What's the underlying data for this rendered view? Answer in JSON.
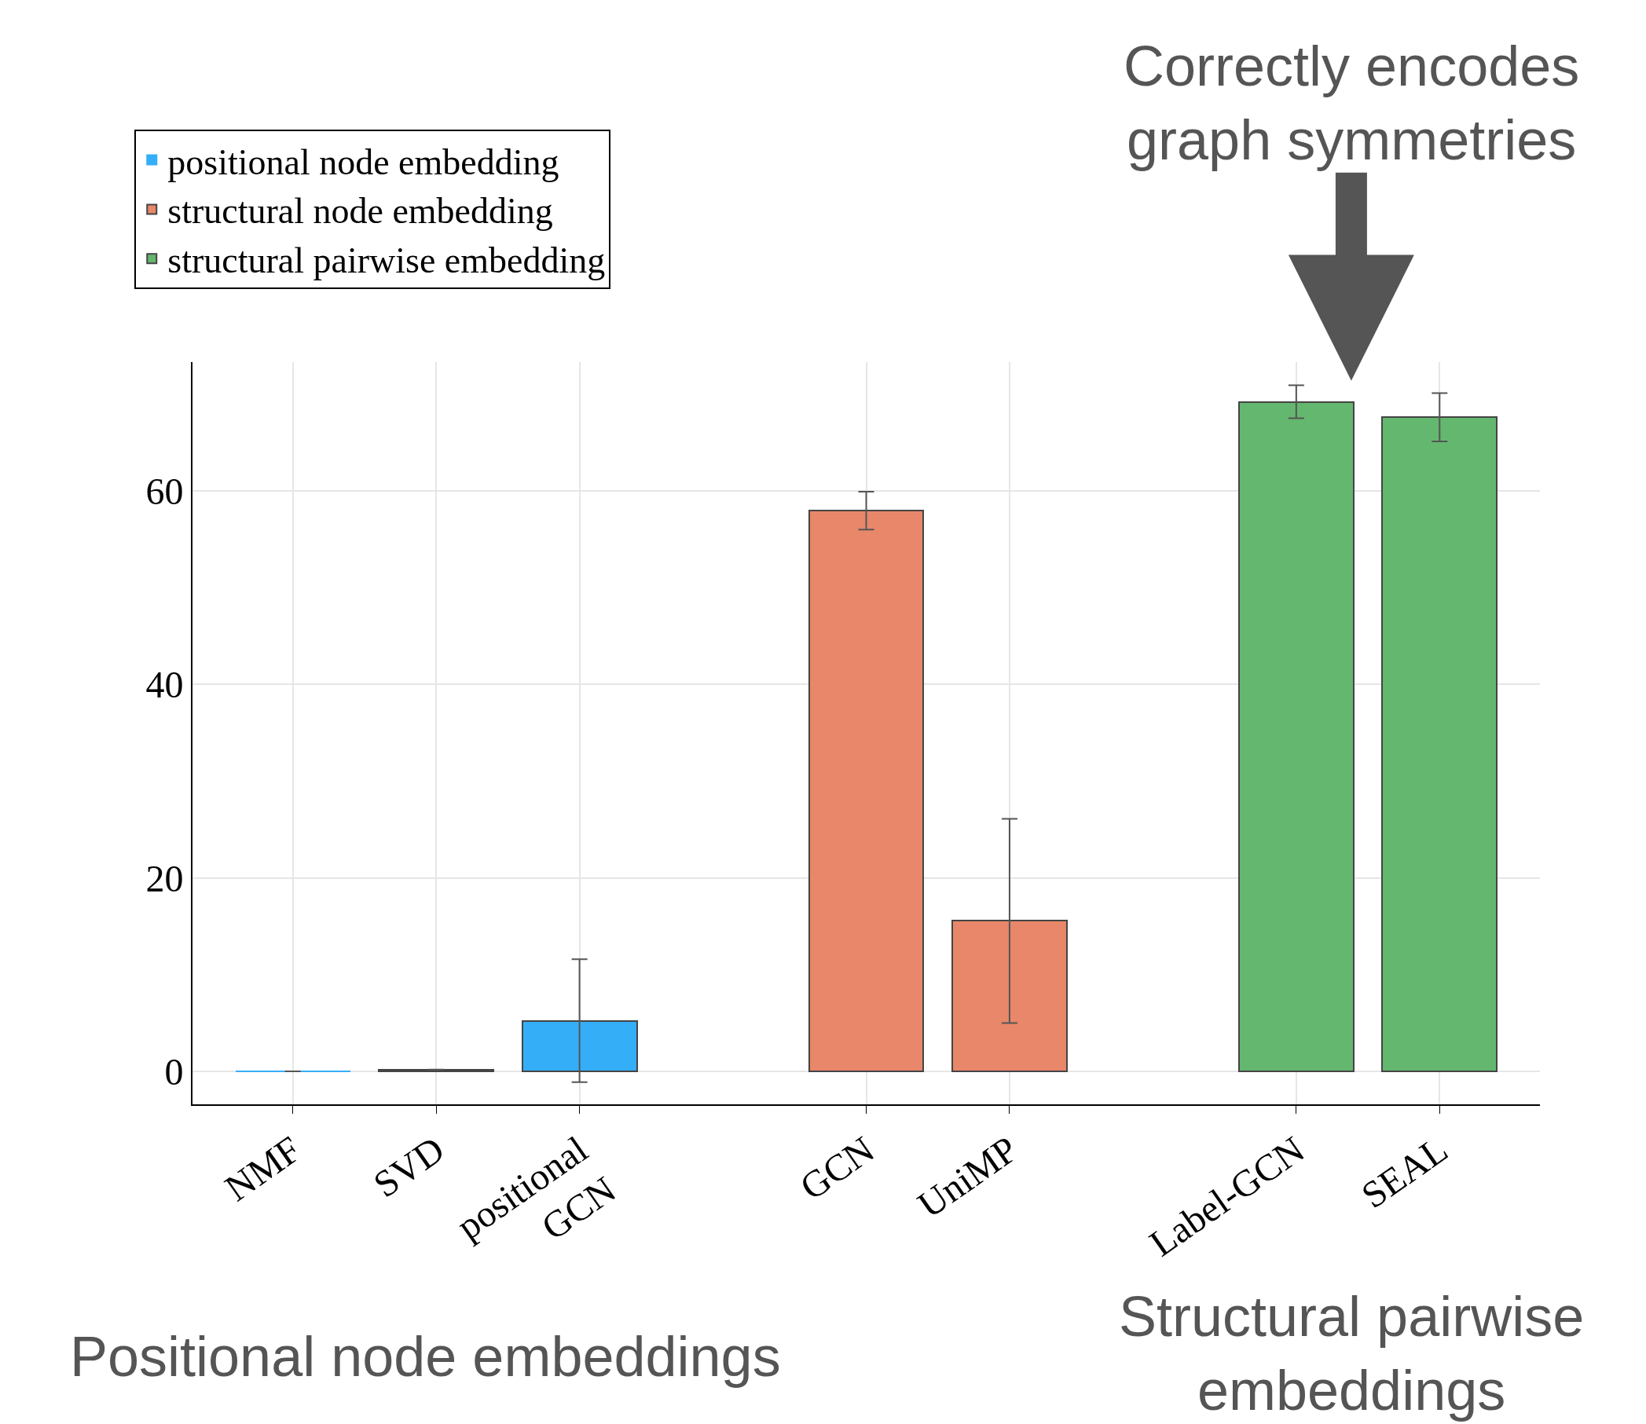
{
  "chart_data": {
    "type": "bar",
    "categories": [
      "NMF",
      "SVD",
      "positional\nGCN",
      null,
      "GCN",
      "UniMP",
      null,
      "Label-GCN",
      "SEAL"
    ],
    "series": [
      {
        "name": "positional node embedding",
        "color": "#35aef8",
        "values": [
          0,
          0.2,
          5.2,
          null,
          null,
          null,
          null,
          null,
          null
        ],
        "errors": [
          null,
          null,
          [
            -1.1,
            11.6
          ],
          null,
          null,
          null,
          null,
          null,
          null
        ]
      },
      {
        "name": "structural node embedding",
        "color": "#e8876a",
        "values": [
          null,
          null,
          null,
          null,
          58,
          15.6,
          null,
          null,
          null
        ],
        "errors": [
          null,
          null,
          null,
          null,
          [
            56.0,
            59.9
          ],
          [
            5.0,
            26.1
          ],
          null,
          null,
          null
        ]
      },
      {
        "name": "structural pairwise embedding",
        "color": "#64b76f",
        "values": [
          null,
          null,
          null,
          null,
          null,
          null,
          null,
          69.2,
          67.6
        ],
        "errors": [
          null,
          null,
          null,
          null,
          null,
          null,
          null,
          [
            67.5,
            70.9
          ],
          [
            65.1,
            70.1
          ]
        ]
      }
    ],
    "ylim": [
      -3.4,
      73.3
    ],
    "yticks": [
      0,
      20,
      40,
      60
    ],
    "grid": true,
    "legend": "top left",
    "annotations": [
      "Correctly encodes\ngraph symmetries",
      "Positional node embeddings",
      "Structural pairwise\nembeddings"
    ]
  }
}
